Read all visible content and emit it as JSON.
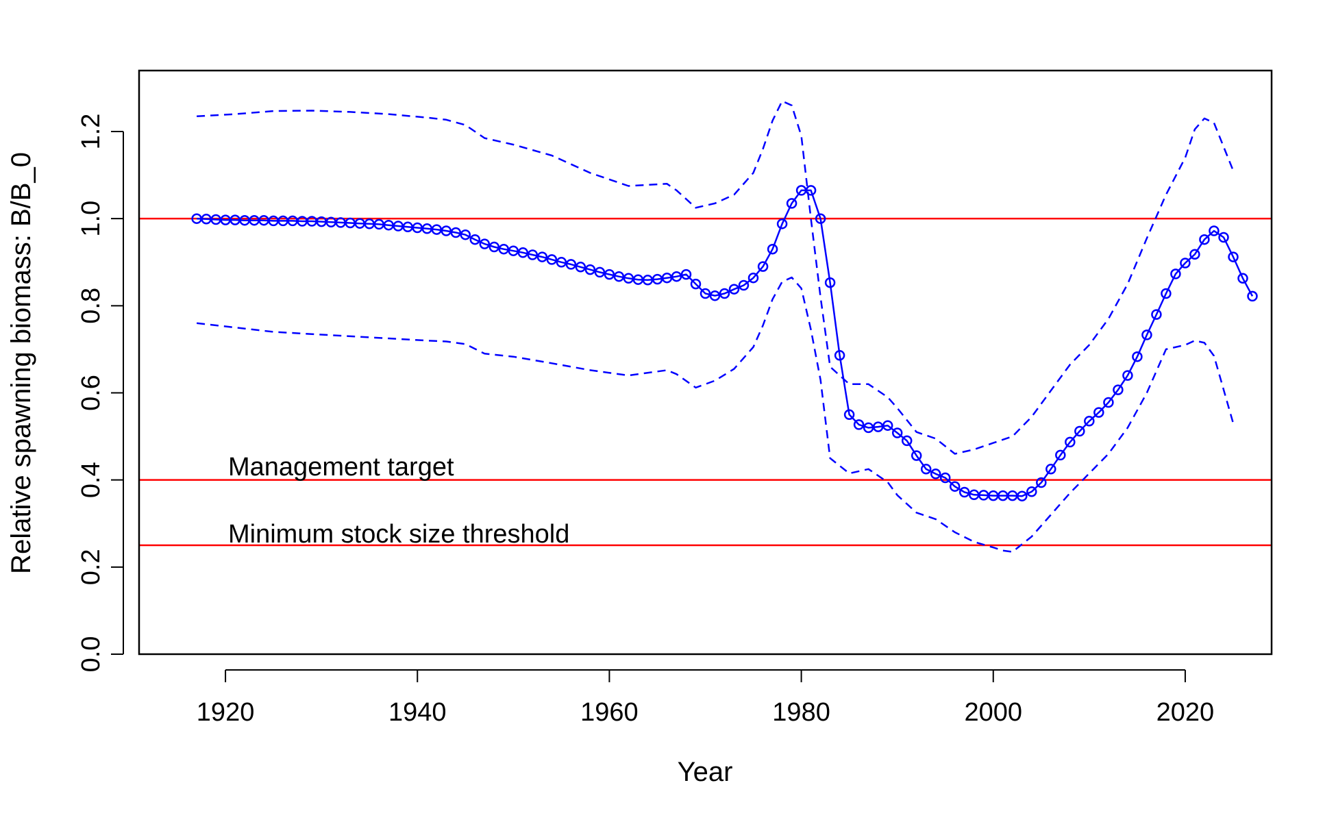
{
  "chart_data": {
    "type": "line",
    "title": "",
    "xlabel": "Year",
    "ylabel": "Relative spawning biomass: B/B_0",
    "xlim": [
      1911,
      2029
    ],
    "ylim": [
      0,
      1.34
    ],
    "x_ticks": [
      "1920",
      "1940",
      "1960",
      "1980",
      "2000",
      "2020"
    ],
    "y_ticks": [
      "0.0",
      "0.2",
      "0.4",
      "0.6",
      "0.8",
      "1.0",
      "1.2"
    ],
    "grid": false,
    "colors": {
      "series": "#0000ff",
      "reference": "#ff0000",
      "text": "#000000"
    },
    "reference_lines": [
      {
        "y": 1.0,
        "label": ""
      },
      {
        "y": 0.4,
        "label": "Management target"
      },
      {
        "y": 0.25,
        "label": "Minimum stock size threshold"
      }
    ],
    "start_year": 1917,
    "series": [
      {
        "name": "",
        "style": "solid-with-circles",
        "values": [
          1.0,
          0.999,
          0.998,
          0.997,
          0.997,
          0.996,
          0.996,
          0.996,
          0.995,
          0.995,
          0.995,
          0.994,
          0.994,
          0.993,
          0.992,
          0.991,
          0.99,
          0.989,
          0.988,
          0.987,
          0.985,
          0.983,
          0.981,
          0.979,
          0.977,
          0.975,
          0.972,
          0.968,
          0.963,
          0.952,
          0.942,
          0.935,
          0.93,
          0.926,
          0.922,
          0.917,
          0.912,
          0.906,
          0.9,
          0.895,
          0.889,
          0.883,
          0.877,
          0.872,
          0.867,
          0.863,
          0.86,
          0.859,
          0.861,
          0.864,
          0.867,
          0.872,
          0.85,
          0.828,
          0.823,
          0.828,
          0.838,
          0.847,
          0.864,
          0.89,
          0.93,
          0.988,
          1.035,
          1.065,
          1.065,
          1.0,
          0.853,
          0.686,
          0.55,
          0.527,
          0.52,
          0.522,
          0.525,
          0.508,
          0.49,
          0.456,
          0.425,
          0.414,
          0.405,
          0.385,
          0.372,
          0.366,
          0.365,
          0.364,
          0.364,
          0.364,
          0.363,
          0.373,
          0.394,
          0.425,
          0.457,
          0.487,
          0.512,
          0.535,
          0.555,
          0.578,
          0.607,
          0.64,
          0.683,
          0.733,
          0.78,
          0.828,
          0.873,
          0.898,
          0.918,
          0.952,
          0.972,
          0.957,
          0.912,
          0.863,
          0.822
        ]
      },
      {
        "name": "",
        "style": "dashed",
        "x": [
          1917,
          1921,
          1925,
          1929,
          1933,
          1937,
          1941,
          1943,
          1945,
          1947,
          1950,
          1954,
          1958,
          1962,
          1966,
          1967,
          1969,
          1971,
          1973,
          1975,
          1976,
          1977,
          1978,
          1979,
          1980,
          1981,
          1982,
          1983,
          1985,
          1987,
          1989,
          1990,
          1992,
          1994,
          1996,
          1998,
          2000,
          2002,
          2004,
          2006,
          2008,
          2010,
          2012,
          2014,
          2016,
          2018,
          2020,
          2021,
          2022,
          2023,
          2025
        ],
        "values": [
          1.235,
          1.24,
          1.247,
          1.248,
          1.245,
          1.24,
          1.232,
          1.227,
          1.215,
          1.185,
          1.17,
          1.145,
          1.105,
          1.075,
          1.08,
          1.065,
          1.025,
          1.035,
          1.055,
          1.105,
          1.16,
          1.225,
          1.27,
          1.26,
          1.19,
          1.0,
          0.82,
          0.66,
          0.62,
          0.62,
          0.59,
          0.565,
          0.51,
          0.495,
          0.46,
          0.47,
          0.485,
          0.5,
          0.545,
          0.605,
          0.665,
          0.71,
          0.77,
          0.85,
          0.955,
          1.055,
          1.14,
          1.205,
          1.23,
          1.22,
          1.11
        ]
      },
      {
        "name": "",
        "style": "dashed",
        "x": [
          1917,
          1921,
          1925,
          1929,
          1933,
          1937,
          1941,
          1943,
          1945,
          1947,
          1950,
          1954,
          1958,
          1962,
          1966,
          1967,
          1969,
          1971,
          1973,
          1975,
          1976,
          1977,
          1978,
          1979,
          1980,
          1981,
          1982,
          1983,
          1985,
          1987,
          1989,
          1990,
          1992,
          1994,
          1996,
          1998,
          2000,
          2001,
          2002,
          2004,
          2006,
          2008,
          2010,
          2012,
          2014,
          2016,
          2018,
          2020,
          2021,
          2022,
          2023,
          2025
        ],
        "values": [
          0.76,
          0.75,
          0.74,
          0.735,
          0.73,
          0.725,
          0.72,
          0.718,
          0.712,
          0.69,
          0.683,
          0.668,
          0.652,
          0.64,
          0.652,
          0.643,
          0.612,
          0.628,
          0.655,
          0.705,
          0.755,
          0.815,
          0.855,
          0.865,
          0.84,
          0.745,
          0.63,
          0.45,
          0.415,
          0.425,
          0.395,
          0.365,
          0.325,
          0.31,
          0.28,
          0.258,
          0.245,
          0.238,
          0.235,
          0.27,
          0.32,
          0.37,
          0.415,
          0.46,
          0.52,
          0.6,
          0.7,
          0.71,
          0.72,
          0.715,
          0.685,
          0.53
        ]
      }
    ]
  }
}
